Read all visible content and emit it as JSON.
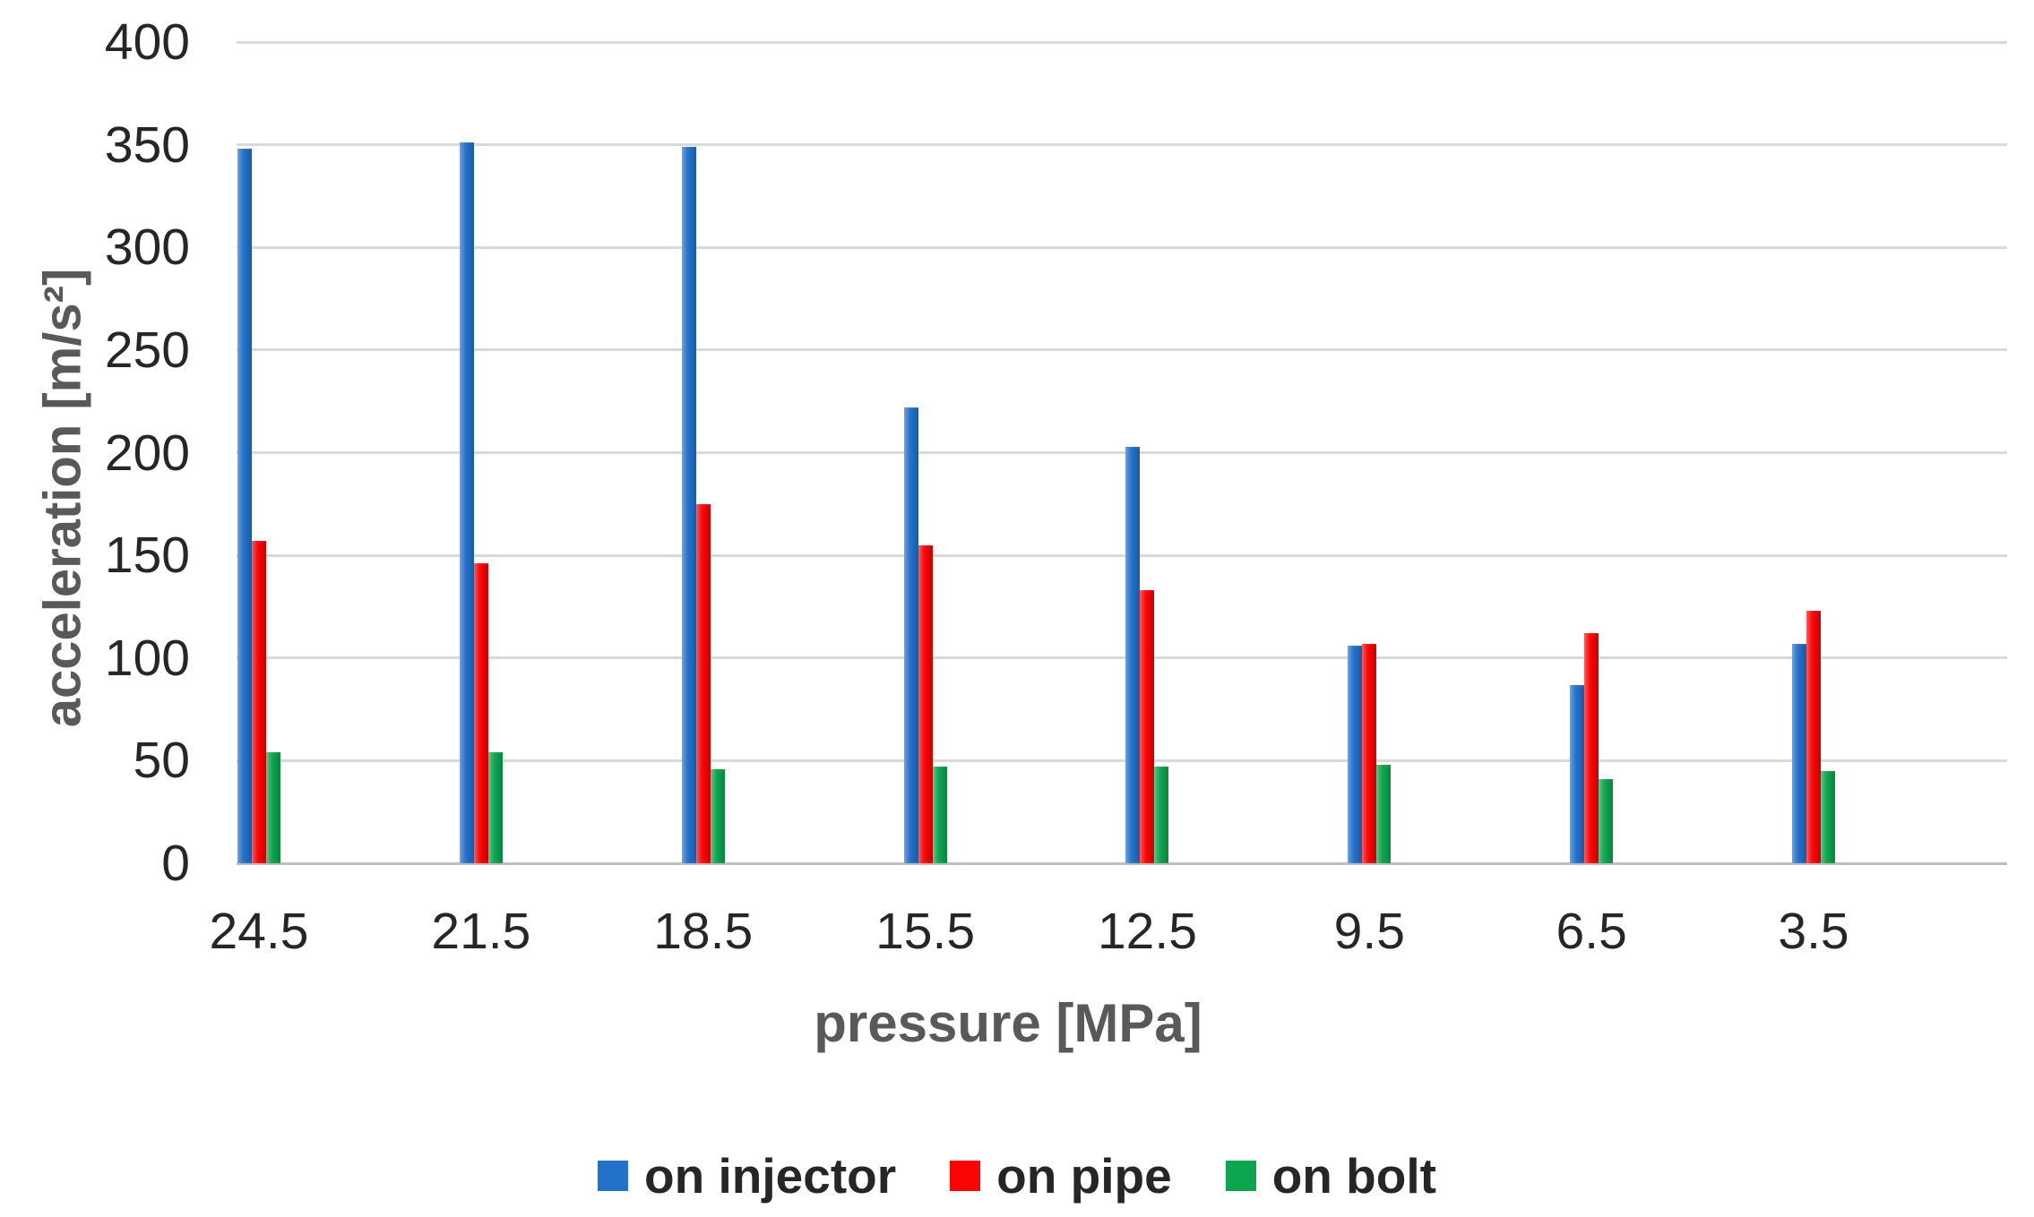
{
  "chart_data": {
    "type": "bar",
    "title": "",
    "xlabel": "pressure [MPa]",
    "ylabel": "acceleration [m/s²]",
    "categories": [
      "24.5",
      "21.5",
      "18.5",
      "15.5",
      "12.5",
      "9.5",
      "6.5",
      "3.5"
    ],
    "series": [
      {
        "name": "on injector",
        "color": "#2271CB",
        "values": [
          348,
          351,
          349,
          222,
          203,
          106,
          87,
          107
        ]
      },
      {
        "name": "on pipe",
        "color": "#FB0404",
        "values": [
          157,
          146,
          175,
          155,
          133,
          107,
          112,
          123
        ]
      },
      {
        "name": "on bolt",
        "color": "#0CA64E",
        "values": [
          54,
          54,
          46,
          47,
          47,
          48,
          41,
          45
        ]
      }
    ],
    "ylim": [
      0,
      400
    ],
    "ytick_step": 50,
    "yticks": [
      "400",
      "350",
      "300",
      "250",
      "200",
      "150",
      "100",
      "50",
      "0"
    ],
    "grid": "horizontal",
    "legend_position": "bottom",
    "gridline_color": "#D9D9D9",
    "baseline_color": "#BEBEBE",
    "tick_label_color": "#262626",
    "axis_title_color": "#595959",
    "background_color": "#FFFFFF"
  }
}
